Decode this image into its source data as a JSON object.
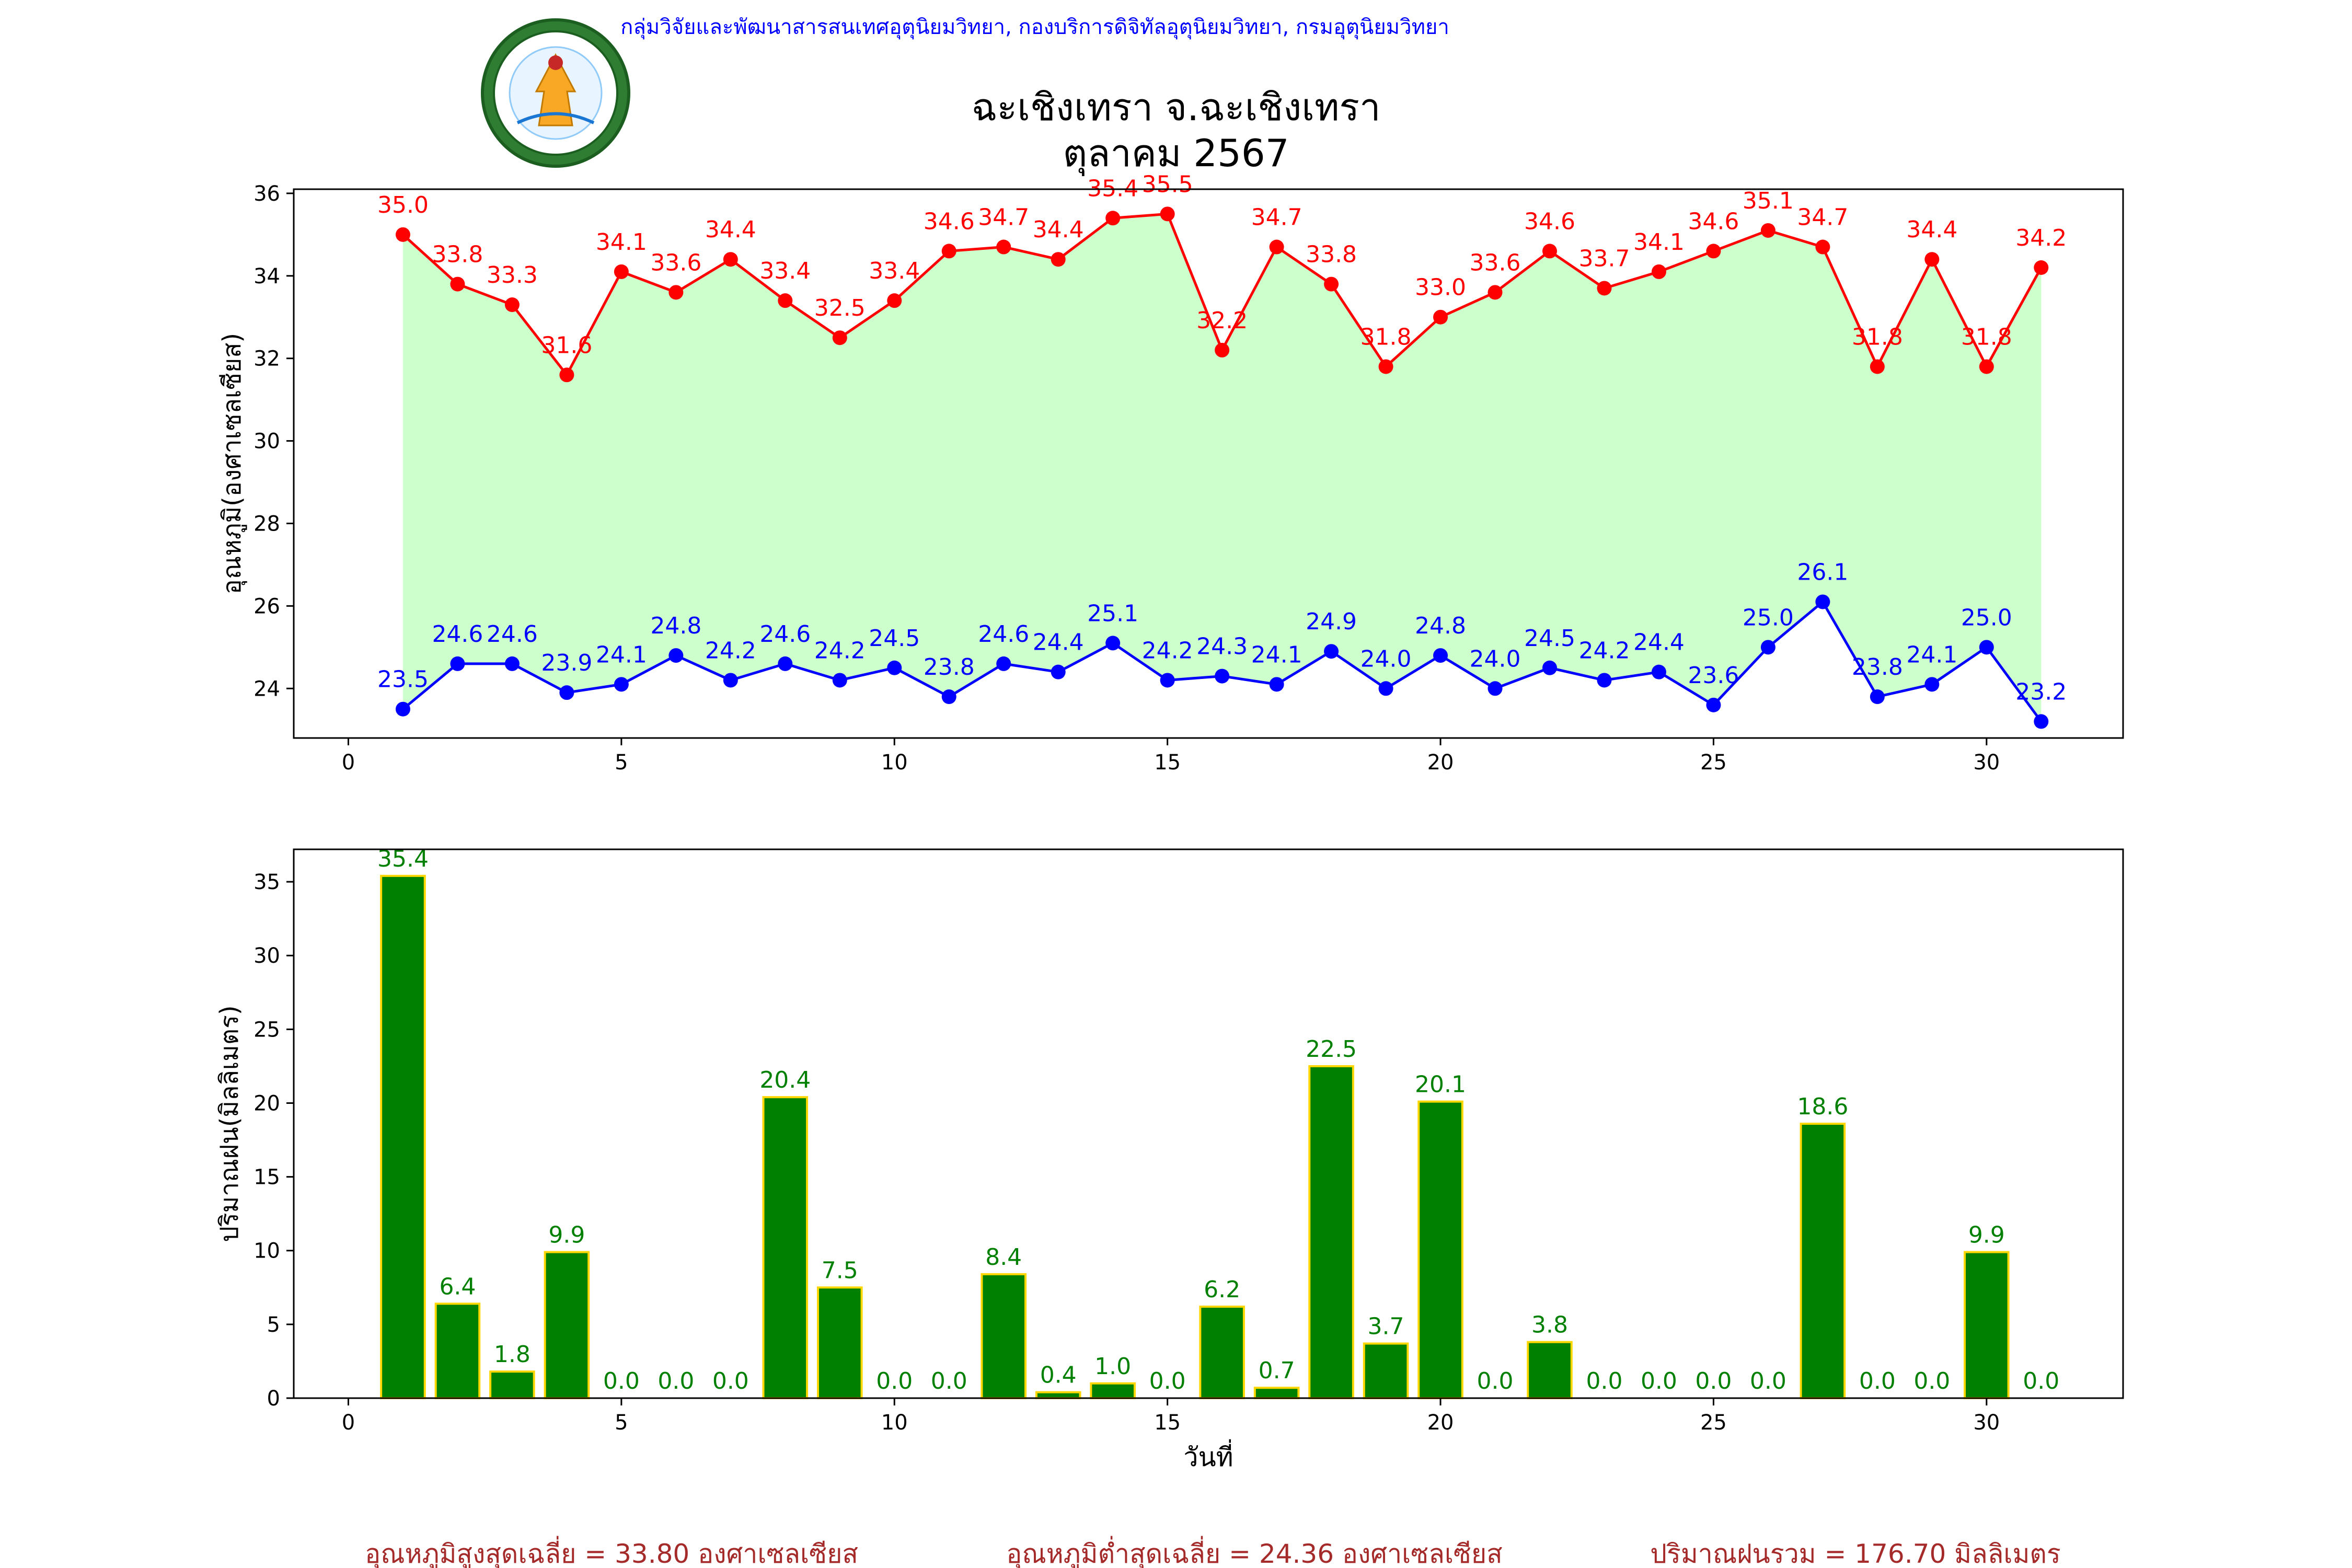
{
  "header": {
    "credit": "กลุ่มวิจัยและพัฒนาสารสนเทศอุตุนิยมวิทยา, กองบริการดิจิทัลอุตุนิยมวิทยา, กรมอุตุนิยมวิทยา",
    "title_line1": "ฉะเชิงเทรา จ.ฉะเชิงเทรา",
    "title_line2": "ตุลาคม 2567",
    "logo_text": "กรมอุตุนิยมวิทยา · METEOROLOGICAL DEPARTMENT"
  },
  "colors": {
    "max_line": "#ff0000",
    "min_line": "#0000ff",
    "fill_between": "#ccffcc",
    "bar_fill": "#008000",
    "bar_edge": "#ffd700",
    "bar_label": "#008000",
    "summary": "#a52a2a",
    "credit": "#0000ff"
  },
  "chart_data": [
    {
      "type": "line",
      "ylabel": "อุณหภูมิ(องศาเซลเซียส)",
      "xlim": [
        -1,
        32.5
      ],
      "ylim": [
        22.8,
        36.1
      ],
      "xticks": [
        0,
        5,
        10,
        15,
        20,
        25,
        30
      ],
      "yticks": [
        24,
        26,
        28,
        30,
        32,
        34,
        36
      ],
      "x": [
        1,
        2,
        3,
        4,
        5,
        6,
        7,
        8,
        9,
        10,
        11,
        12,
        13,
        14,
        15,
        16,
        17,
        18,
        19,
        20,
        21,
        22,
        23,
        24,
        25,
        26,
        27,
        28,
        29,
        30,
        31
      ],
      "series": [
        {
          "key": "max",
          "values": [
            35.0,
            33.8,
            33.3,
            31.6,
            34.1,
            33.6,
            34.4,
            33.4,
            32.5,
            33.4,
            34.6,
            34.7,
            34.4,
            35.4,
            35.5,
            32.2,
            34.7,
            33.8,
            31.8,
            33.0,
            33.6,
            34.6,
            33.7,
            34.1,
            34.6,
            35.1,
            34.7,
            31.8,
            34.4,
            31.8,
            34.2
          ],
          "labels": [
            "35.0",
            "33.8",
            "33.3",
            "31.6",
            "34.1",
            "33.6",
            "34.4",
            "33.4",
            "32.5",
            "33.4",
            "34.6",
            "34.7",
            "34.4",
            "35.4",
            "35.5",
            "32.2",
            "34.7",
            "33.8",
            "31.8",
            "33.0",
            "33.6",
            "34.6",
            "33.7",
            "34.1",
            "34.6",
            "35.1",
            "34.7",
            "31.8",
            "34.4",
            "31.8",
            "34.2"
          ]
        },
        {
          "key": "min",
          "values": [
            23.5,
            24.6,
            24.6,
            23.9,
            24.1,
            24.8,
            24.2,
            24.6,
            24.2,
            24.5,
            23.8,
            24.6,
            24.4,
            25.1,
            24.2,
            24.3,
            24.1,
            24.9,
            24.0,
            24.8,
            24.0,
            24.5,
            24.2,
            24.4,
            23.6,
            25.0,
            26.1,
            23.8,
            24.1,
            25.0,
            23.2
          ],
          "labels": [
            "23.5",
            "24.6",
            "24.6",
            "23.9",
            "24.1",
            "24.8",
            "24.2",
            "24.6",
            "24.2",
            "24.5",
            "23.8",
            "24.6",
            "24.4",
            "25.1",
            "24.2",
            "24.3",
            "24.1",
            "24.9",
            "24.0",
            "24.8",
            "24.0",
            "24.5",
            "24.2",
            "24.4",
            "23.6",
            "25.0",
            "26.1",
            "23.8",
            "24.1",
            "25.0",
            "23.2"
          ]
        }
      ],
      "fill_between": true,
      "grid": false
    },
    {
      "type": "bar",
      "xlabel": "วันที่",
      "ylabel": "ปริมาณฝน(มิลลิเมตร)",
      "xlim": [
        -1,
        32.5
      ],
      "ylim": [
        0,
        37.2
      ],
      "xticks": [
        0,
        5,
        10,
        15,
        20,
        25,
        30
      ],
      "yticks": [
        0,
        5,
        10,
        15,
        20,
        25,
        30,
        35
      ],
      "x": [
        1,
        2,
        3,
        4,
        5,
        6,
        7,
        8,
        9,
        10,
        11,
        12,
        13,
        14,
        15,
        16,
        17,
        18,
        19,
        20,
        21,
        22,
        23,
        24,
        25,
        26,
        27,
        28,
        29,
        30,
        31
      ],
      "values": [
        35.4,
        6.4,
        1.8,
        9.9,
        0.0,
        0.0,
        0.0,
        20.4,
        7.5,
        0.0,
        0.0,
        8.4,
        0.4,
        1.0,
        0.0,
        6.2,
        0.7,
        22.5,
        3.7,
        20.1,
        0.0,
        3.8,
        0.0,
        0.0,
        0.0,
        0.0,
        18.6,
        0.0,
        0.0,
        9.9,
        0.0
      ],
      "labels": [
        "35.4",
        "6.4",
        "1.8",
        "9.9",
        "0.0",
        "0.0",
        "0.0",
        "20.4",
        "7.5",
        "0.0",
        "0.0",
        "8.4",
        "0.4",
        "1.0",
        "0.0",
        "6.2",
        "0.7",
        "22.5",
        "3.7",
        "20.1",
        "0.0",
        "3.8",
        "0.0",
        "0.0",
        "0.0",
        "0.0",
        "18.6",
        "0.0",
        "0.0",
        "9.9",
        "0.0"
      ],
      "grid": false
    }
  ],
  "summary": {
    "avg_max": "อุณหภูมิสูงสุดเฉลี่ย = 33.80 องศาเซลเซียส",
    "avg_min": "อุณหภูมิต่ำสุดเฉลี่ย = 24.36 องศาเซลเซียส",
    "total_rain": "ปริมาณฝนรวม = 176.70 มิลลิเมตร"
  }
}
